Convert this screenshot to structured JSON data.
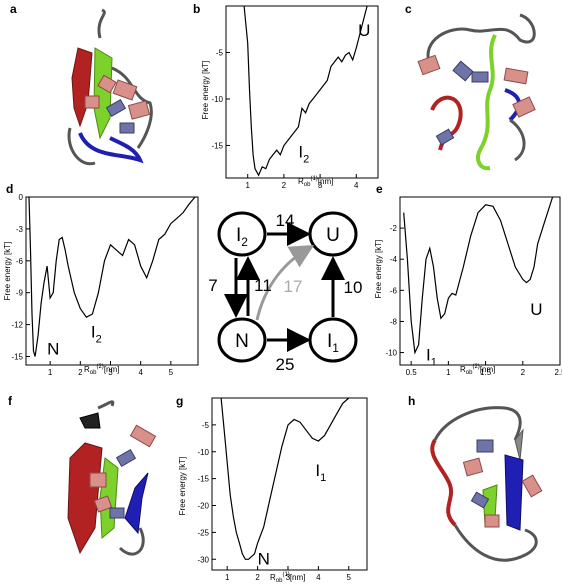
{
  "panels": {
    "a": "a",
    "b": "b",
    "c": "c",
    "d": "d",
    "e": "e",
    "f": "f",
    "g": "g",
    "h": "h"
  },
  "axis_y": "Free energy [kT]",
  "axis_x_b": "R",
  "axis_x_b_sub": "ob",
  "axis_x_b_sup": "(1)",
  "axis_x_unit": "[nm]",
  "axis_x_d_sup": "(2)",
  "colors": {
    "red": "#b22222",
    "green": "#7cd12a",
    "blue": "#1f1fb4",
    "grey": "#555555",
    "pink": "#d9908a",
    "slate": "#6e74a8"
  },
  "chart_data": [
    {
      "id": "b",
      "type": "line",
      "xlim": [
        0.4,
        4.6
      ],
      "ylim": [
        -18.5,
        0
      ],
      "xticks": [
        "1",
        "2",
        "3",
        "4"
      ],
      "yticks": [
        "-5",
        "-10",
        "-15"
      ],
      "labels": [
        {
          "text": "U"
        },
        {
          "text": "I",
          "sub": "2"
        }
      ],
      "x": [
        0.9,
        1.0,
        1.05,
        1.1,
        1.15,
        1.2,
        1.3,
        1.4,
        1.5,
        1.6,
        1.7,
        1.8,
        1.9,
        2.0,
        2.2,
        2.4,
        2.5,
        2.6,
        2.7,
        2.8,
        3.0,
        3.2,
        3.3,
        3.4,
        3.5,
        3.6,
        3.7,
        3.8,
        3.9,
        4.0,
        4.1,
        4.2,
        4.3
      ],
      "y": [
        0,
        -4,
        -9,
        -13,
        -16,
        -17.5,
        -18.2,
        -17.3,
        -17.5,
        -16.5,
        -16,
        -15.5,
        -16,
        -15,
        -14,
        -13,
        -11,
        -11.5,
        -10.5,
        -10,
        -9,
        -8,
        -6.5,
        -6,
        -5.5,
        -6,
        -5.3,
        -5,
        -5.8,
        -4.5,
        -3,
        -1.5,
        0
      ]
    },
    {
      "id": "d",
      "type": "line",
      "xlim": [
        0.2,
        5.9
      ],
      "ylim": [
        -15.8,
        0
      ],
      "xticks": [
        "1",
        "2",
        "3",
        "4",
        "5"
      ],
      "yticks": [
        "0",
        "-3",
        "-6",
        "-9",
        "-12",
        "-15"
      ],
      "labels": [
        {
          "text": "N"
        },
        {
          "text": "I",
          "sub": "2"
        }
      ],
      "x": [
        0.3,
        0.35,
        0.4,
        0.45,
        0.5,
        0.6,
        0.7,
        0.8,
        0.9,
        1.0,
        1.1,
        1.2,
        1.3,
        1.4,
        1.5,
        1.6,
        1.8,
        2.0,
        2.2,
        2.4,
        2.6,
        2.8,
        3.0,
        3.2,
        3.4,
        3.6,
        3.8,
        4.0,
        4.2,
        4.4,
        4.6,
        4.8,
        5.0,
        5.2,
        5.4,
        5.6,
        5.8
      ],
      "y": [
        0,
        -5,
        -11,
        -14.5,
        -15,
        -13,
        -10,
        -8,
        -6.5,
        -9.5,
        -9,
        -6,
        -4,
        -3.8,
        -5,
        -6.5,
        -9,
        -10.5,
        -11.3,
        -11,
        -9,
        -6,
        -4.5,
        -5,
        -5.5,
        -4,
        -4.5,
        -6.5,
        -7.6,
        -6,
        -4,
        -3.5,
        -2.5,
        -2,
        -1.5,
        -0.7,
        0
      ]
    },
    {
      "id": "e",
      "type": "line",
      "xlim": [
        0.35,
        2.5
      ],
      "ylim": [
        -10.8,
        0
      ],
      "xticks": [
        "0.5",
        "1",
        "1.5",
        "2",
        "2.5"
      ],
      "yticks": [
        "-2",
        "-4",
        "-6",
        "-8",
        "-10"
      ],
      "labels": [
        {
          "text": "U"
        },
        {
          "text": "I",
          "sub": "1"
        }
      ],
      "x": [
        0.4,
        0.45,
        0.5,
        0.55,
        0.6,
        0.65,
        0.7,
        0.75,
        0.8,
        0.85,
        0.9,
        0.95,
        1.0,
        1.05,
        1.1,
        1.2,
        1.3,
        1.4,
        1.5,
        1.6,
        1.7,
        1.8,
        1.9,
        2.0,
        2.05,
        2.1,
        2.15,
        2.2,
        2.3,
        2.4
      ],
      "y": [
        -1,
        -4,
        -8,
        -10,
        -9.5,
        -6.5,
        -4,
        -3.3,
        -4.5,
        -6.5,
        -7.8,
        -7.5,
        -6.5,
        -6.2,
        -6.3,
        -4.5,
        -2.5,
        -1,
        -0.5,
        -0.6,
        -1.5,
        -3,
        -4.5,
        -5.3,
        -5.5,
        -5.3,
        -4.5,
        -3,
        -1.5,
        0
      ]
    },
    {
      "id": "g",
      "type": "line",
      "xlim": [
        0.5,
        5.6
      ],
      "ylim": [
        -32,
        0
      ],
      "xticks": [
        "1",
        "2",
        "3",
        "4",
        "5"
      ],
      "yticks": [
        "-5",
        "-10",
        "-15",
        "-20",
        "-25",
        "-30"
      ],
      "labels": [
        {
          "text": "I",
          "sub": "1"
        },
        {
          "text": "N"
        }
      ],
      "x": [
        0.8,
        0.9,
        1.0,
        1.1,
        1.2,
        1.3,
        1.4,
        1.5,
        1.6,
        1.7,
        1.8,
        1.9,
        2.0,
        2.2,
        2.4,
        2.6,
        2.8,
        3.0,
        3.2,
        3.4,
        3.6,
        3.8,
        4.0,
        4.2,
        4.4,
        4.6,
        4.8,
        5.0
      ],
      "y": [
        0,
        -6,
        -12,
        -18,
        -22,
        -25,
        -27,
        -29,
        -30,
        -30,
        -29.5,
        -29,
        -27,
        -24,
        -19,
        -14,
        -9,
        -5,
        -4,
        -4.5,
        -6,
        -7.5,
        -8,
        -7,
        -5,
        -3,
        -1,
        0
      ]
    }
  ],
  "network": {
    "states": [
      {
        "id": "I2",
        "label": "I",
        "sub": "2"
      },
      {
        "id": "U",
        "label": "U",
        "sub": ""
      },
      {
        "id": "N",
        "label": "N",
        "sub": ""
      },
      {
        "id": "I1",
        "label": "I",
        "sub": "1"
      }
    ],
    "rates": {
      "I2_U": "14",
      "I2_N": "7",
      "N_I2": "11",
      "N_U": "17",
      "I1_U": "10",
      "N_I1": "25"
    }
  }
}
